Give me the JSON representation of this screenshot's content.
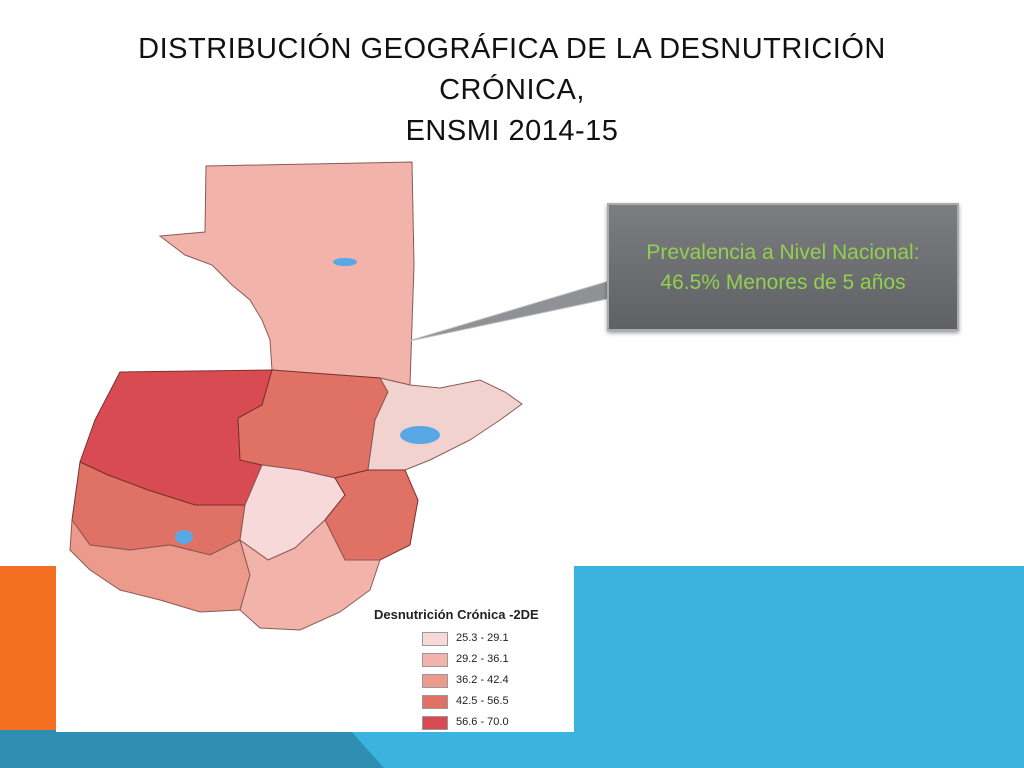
{
  "title": {
    "line1": "DISTRIBUCIÓN GEOGRÁFICA DE LA DESNUTRICIÓN",
    "line2": "CRÓNICA,",
    "line3": "ENSMI 2014-15"
  },
  "callout": {
    "line1": "Prevalencia a Nivel Nacional:",
    "line2": "46.5% Menores de 5 años"
  },
  "legend": {
    "title": "Desnutrición Crónica -2DE",
    "items": [
      {
        "label": "25.3 - 29.1",
        "color": "#f7d9d9"
      },
      {
        "label": "29.2 - 36.1",
        "color": "#f2b3ab"
      },
      {
        "label": "36.2 - 42.4",
        "color": "#ec9a8c"
      },
      {
        "label": "42.5 - 56.5",
        "color": "#df7264"
      },
      {
        "label": "56.6 - 70.0",
        "color": "#d94b52"
      }
    ]
  },
  "colors": {
    "orange_band": "#f26f21",
    "blue_band": "#3ab3e0",
    "callout_text": "#92d050",
    "water": "#5aa7e6"
  }
}
